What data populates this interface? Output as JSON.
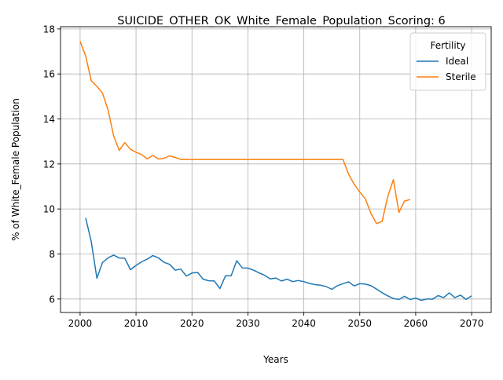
{
  "chart_data": {
    "type": "line",
    "title": "SUICIDE_OTHER_OK_White_Female_Population_Scoring: 6",
    "xlabel": "Years",
    "ylabel": "% of White_Female Population",
    "xlim": [
      1996.5,
      2073.5
    ],
    "ylim": [
      5.4,
      18.1
    ],
    "xticks": [
      2000,
      2010,
      2020,
      2030,
      2040,
      2050,
      2060,
      2070
    ],
    "yticks": [
      6,
      8,
      10,
      12,
      14,
      16,
      18
    ],
    "grid": true,
    "legend": {
      "title": "Fertility",
      "placement": "top-right"
    },
    "series": [
      {
        "name": "Ideal",
        "color": "#1f77b4",
        "x": [
          2001,
          2002,
          2003,
          2004,
          2005,
          2006,
          2007,
          2008,
          2009,
          2010,
          2011,
          2012,
          2013,
          2014,
          2015,
          2016,
          2017,
          2018,
          2019,
          2020,
          2021,
          2022,
          2023,
          2024,
          2025,
          2026,
          2027,
          2028,
          2029,
          2030,
          2031,
          2032,
          2033,
          2034,
          2035,
          2036,
          2037,
          2038,
          2039,
          2040,
          2041,
          2042,
          2043,
          2044,
          2045,
          2046,
          2047,
          2048,
          2049,
          2050,
          2051,
          2052,
          2053,
          2054,
          2055,
          2056,
          2057,
          2058,
          2059,
          2060,
          2061,
          2062,
          2063,
          2064,
          2065,
          2066,
          2067,
          2068,
          2069,
          2070
        ],
        "y": [
          9.6,
          8.55,
          6.92,
          7.62,
          7.83,
          7.95,
          7.82,
          7.81,
          7.3,
          7.49,
          7.65,
          7.77,
          7.93,
          7.83,
          7.63,
          7.54,
          7.28,
          7.33,
          7.02,
          7.15,
          7.18,
          6.88,
          6.81,
          6.8,
          6.46,
          7.03,
          7.03,
          7.7,
          7.38,
          7.37,
          7.28,
          7.16,
          7.05,
          6.89,
          6.93,
          6.8,
          6.88,
          6.77,
          6.82,
          6.77,
          6.69,
          6.64,
          6.61,
          6.55,
          6.43,
          6.59,
          6.68,
          6.76,
          6.58,
          6.68,
          6.66,
          6.59,
          6.44,
          6.28,
          6.14,
          6.02,
          5.98,
          6.12,
          5.98,
          6.04,
          5.94,
          6.0,
          5.99,
          6.15,
          6.06,
          6.27,
          6.06,
          6.17,
          5.98,
          6.14
        ]
      },
      {
        "name": "Sterile",
        "color": "#ff7f0e",
        "x": [
          2000,
          2001,
          2002,
          2003,
          2004,
          2005,
          2006,
          2007,
          2008,
          2009,
          2010,
          2011,
          2012,
          2013,
          2014,
          2015,
          2016,
          2017,
          2018,
          2019,
          2020,
          2025,
          2030,
          2035,
          2040,
          2045,
          2047,
          2048,
          2049,
          2050,
          2051,
          2052,
          2053,
          2054,
          2055,
          2056,
          2057,
          2058,
          2059
        ],
        "y": [
          17.45,
          16.8,
          15.7,
          15.45,
          15.15,
          14.4,
          13.25,
          12.6,
          12.95,
          12.65,
          12.52,
          12.42,
          12.22,
          12.38,
          12.22,
          12.25,
          12.36,
          12.29,
          12.2,
          12.2,
          12.2,
          12.2,
          12.2,
          12.2,
          12.2,
          12.2,
          12.2,
          11.55,
          11.1,
          10.75,
          10.45,
          9.8,
          9.35,
          9.45,
          10.55,
          11.3,
          9.85,
          10.35,
          10.42
        ]
      }
    ]
  }
}
